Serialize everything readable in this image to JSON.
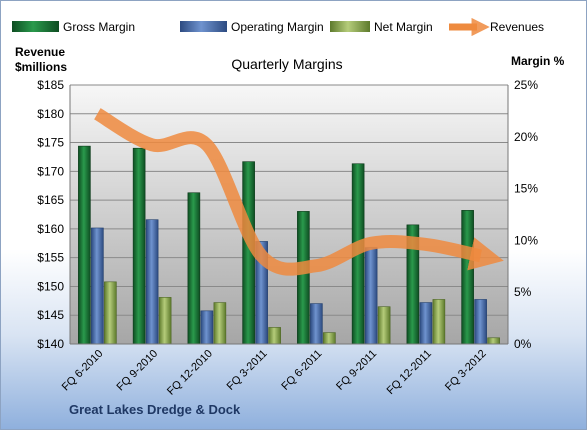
{
  "company": "Great Lakes Dredge & Dock",
  "colors": {
    "gross": "#1a7a3a",
    "operating": "#4a6fae",
    "net": "#8fae4e",
    "revenues": "#ee8a3e"
  },
  "chart_data": {
    "type": "bar",
    "title": "Quarterly Margins",
    "y_left_label": [
      "Revenue",
      "$millions"
    ],
    "y_right_label": "Margin %",
    "categories": [
      "FQ 6-2010",
      "FQ 9-2010",
      "FQ 12-2010",
      "FQ 3-2011",
      "FQ 6-2011",
      "FQ 9-2011",
      "FQ 12-2011",
      "FQ 3-2012"
    ],
    "y_left_ticks": [
      "$140",
      "$145",
      "$150",
      "$155",
      "$160",
      "$165",
      "$170",
      "$175",
      "$180",
      "$185"
    ],
    "y_right_ticks": [
      "0%",
      "5%",
      "10%",
      "15%",
      "20%",
      "25%"
    ],
    "ylim_left": [
      140,
      185
    ],
    "ylim_right": [
      0,
      25
    ],
    "grid": true,
    "legend_position": "top",
    "series": [
      {
        "name": "Gross Margin",
        "kind": "bar",
        "axis": "right",
        "values": [
          19.1,
          18.9,
          14.6,
          17.6,
          12.8,
          17.4,
          11.5,
          12.9
        ]
      },
      {
        "name": "Operating Margin",
        "kind": "bar",
        "axis": "right",
        "values": [
          11.2,
          12.0,
          3.2,
          9.9,
          3.9,
          9.3,
          4.0,
          4.3
        ]
      },
      {
        "name": "Net Margin",
        "kind": "bar",
        "axis": "right",
        "values": [
          6.0,
          4.5,
          4.0,
          1.6,
          1.1,
          3.6,
          4.3,
          0.6
        ]
      },
      {
        "name": "Revenues",
        "kind": "line",
        "axis": "left",
        "values": [
          180.0,
          174.6,
          174.6,
          155.3,
          153.6,
          157.5,
          157.3,
          155.3
        ]
      }
    ]
  }
}
